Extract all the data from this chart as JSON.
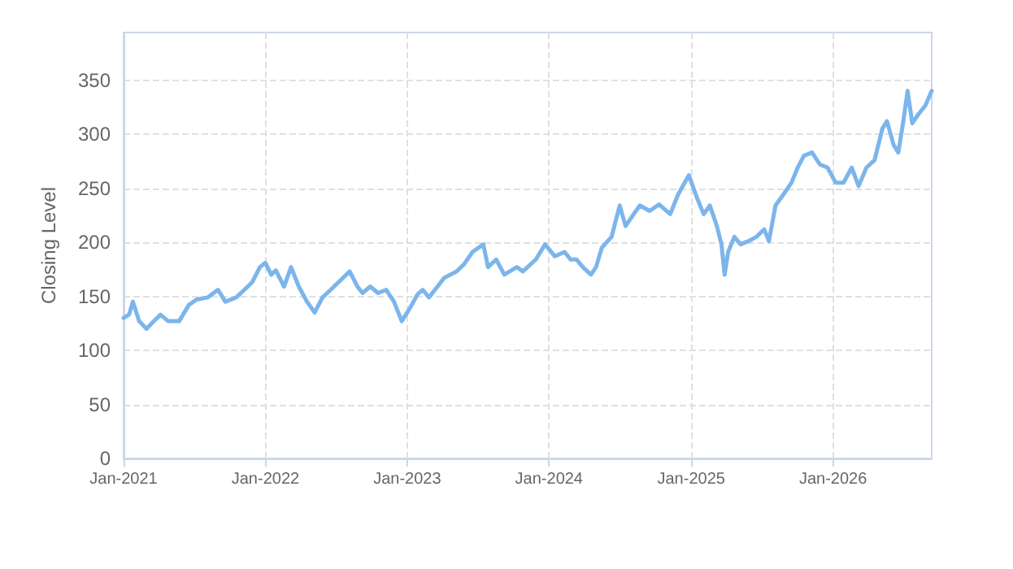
{
  "chart_data": {
    "type": "line",
    "ylabel": "Closing Level",
    "xlim": [
      "2021-01-01",
      "2026-09-12"
    ],
    "ylim": [
      0,
      394
    ],
    "yticks": [
      0,
      50,
      100,
      150,
      200,
      250,
      300,
      350
    ],
    "xticks": [
      {
        "value": "2021-01-01",
        "label": "Jan-2021"
      },
      {
        "value": "2022-01-01",
        "label": "Jan-2022"
      },
      {
        "value": "2023-01-01",
        "label": "Jan-2023"
      },
      {
        "value": "2024-01-01",
        "label": "Jan-2024"
      },
      {
        "value": "2025-01-01",
        "label": "Jan-2025"
      },
      {
        "value": "2026-01-01",
        "label": "Jan-2026"
      }
    ],
    "grid": true,
    "marker": "none",
    "line_style": "solid",
    "x": [
      "2021-01-01",
      "2021-01-15",
      "2021-01-25",
      "2021-02-10",
      "2021-03-01",
      "2021-03-20",
      "2021-04-06",
      "2021-04-26",
      "2021-05-24",
      "2021-06-18",
      "2021-07-08",
      "2021-08-06",
      "2021-09-01",
      "2021-09-20",
      "2021-10-18",
      "2021-11-08",
      "2021-11-28",
      "2021-12-18",
      "2022-01-01",
      "2022-01-16",
      "2022-01-28",
      "2022-02-18",
      "2022-03-08",
      "2022-03-28",
      "2022-04-18",
      "2022-05-08",
      "2022-05-28",
      "2022-06-18",
      "2022-07-08",
      "2022-08-06",
      "2022-08-26",
      "2022-09-08",
      "2022-09-28",
      "2022-10-18",
      "2022-11-08",
      "2022-11-28",
      "2022-12-18",
      "2023-01-08",
      "2023-01-28",
      "2023-02-10",
      "2023-02-26",
      "2023-03-20",
      "2023-04-06",
      "2023-05-08",
      "2023-05-28",
      "2023-06-18",
      "2023-07-16",
      "2023-07-28",
      "2023-08-18",
      "2023-09-08",
      "2023-10-10",
      "2023-10-26",
      "2023-11-28",
      "2023-12-22",
      "2024-01-16",
      "2024-02-10",
      "2024-02-26",
      "2024-03-12",
      "2024-03-28",
      "2024-04-18",
      "2024-05-01",
      "2024-05-16",
      "2024-06-10",
      "2024-07-01",
      "2024-07-16",
      "2024-08-06",
      "2024-08-22",
      "2024-09-16",
      "2024-10-10",
      "2024-11-08",
      "2024-11-28",
      "2024-12-26",
      "2025-01-16",
      "2025-02-02",
      "2025-02-18",
      "2025-03-08",
      "2025-03-20",
      "2025-03-28",
      "2025-04-06",
      "2025-04-22",
      "2025-05-08",
      "2025-05-28",
      "2025-06-18",
      "2025-07-08",
      "2025-07-20",
      "2025-08-06",
      "2025-08-26",
      "2025-09-16",
      "2025-10-02",
      "2025-10-18",
      "2025-11-08",
      "2025-11-28",
      "2025-12-18",
      "2026-01-08",
      "2026-01-28",
      "2026-02-18",
      "2026-03-08",
      "2026-03-28",
      "2026-04-18",
      "2026-05-08",
      "2026-05-20",
      "2026-06-06",
      "2026-06-18",
      "2026-07-01",
      "2026-07-12",
      "2026-07-24",
      "2026-08-10",
      "2026-08-26",
      "2026-09-12"
    ],
    "series": [
      {
        "color": "#7cb5ec",
        "values": [
          130,
          133,
          145,
          127,
          120,
          127,
          133,
          127,
          127,
          142,
          147,
          149,
          156,
          145,
          149,
          156,
          163,
          177,
          181,
          170,
          174,
          159,
          177,
          159,
          145,
          135,
          149,
          156,
          163,
          173,
          159,
          153,
          159,
          153,
          156,
          145,
          127,
          139,
          152,
          156,
          149,
          159,
          167,
          173,
          180,
          191,
          198,
          177,
          184,
          170,
          177,
          173,
          184,
          198,
          187,
          191,
          184,
          184,
          177,
          170,
          177,
          195,
          205,
          234,
          215,
          226,
          234,
          229,
          235,
          226,
          244,
          262,
          241,
          226,
          234,
          215,
          198,
          170,
          191,
          205,
          198,
          201,
          205,
          212,
          201,
          234,
          244,
          255,
          269,
          280,
          283,
          272,
          269,
          255,
          255,
          269,
          252,
          269,
          276,
          305,
          312,
          290,
          283,
          312,
          340,
          310,
          319,
          326,
          340
        ]
      }
    ]
  }
}
